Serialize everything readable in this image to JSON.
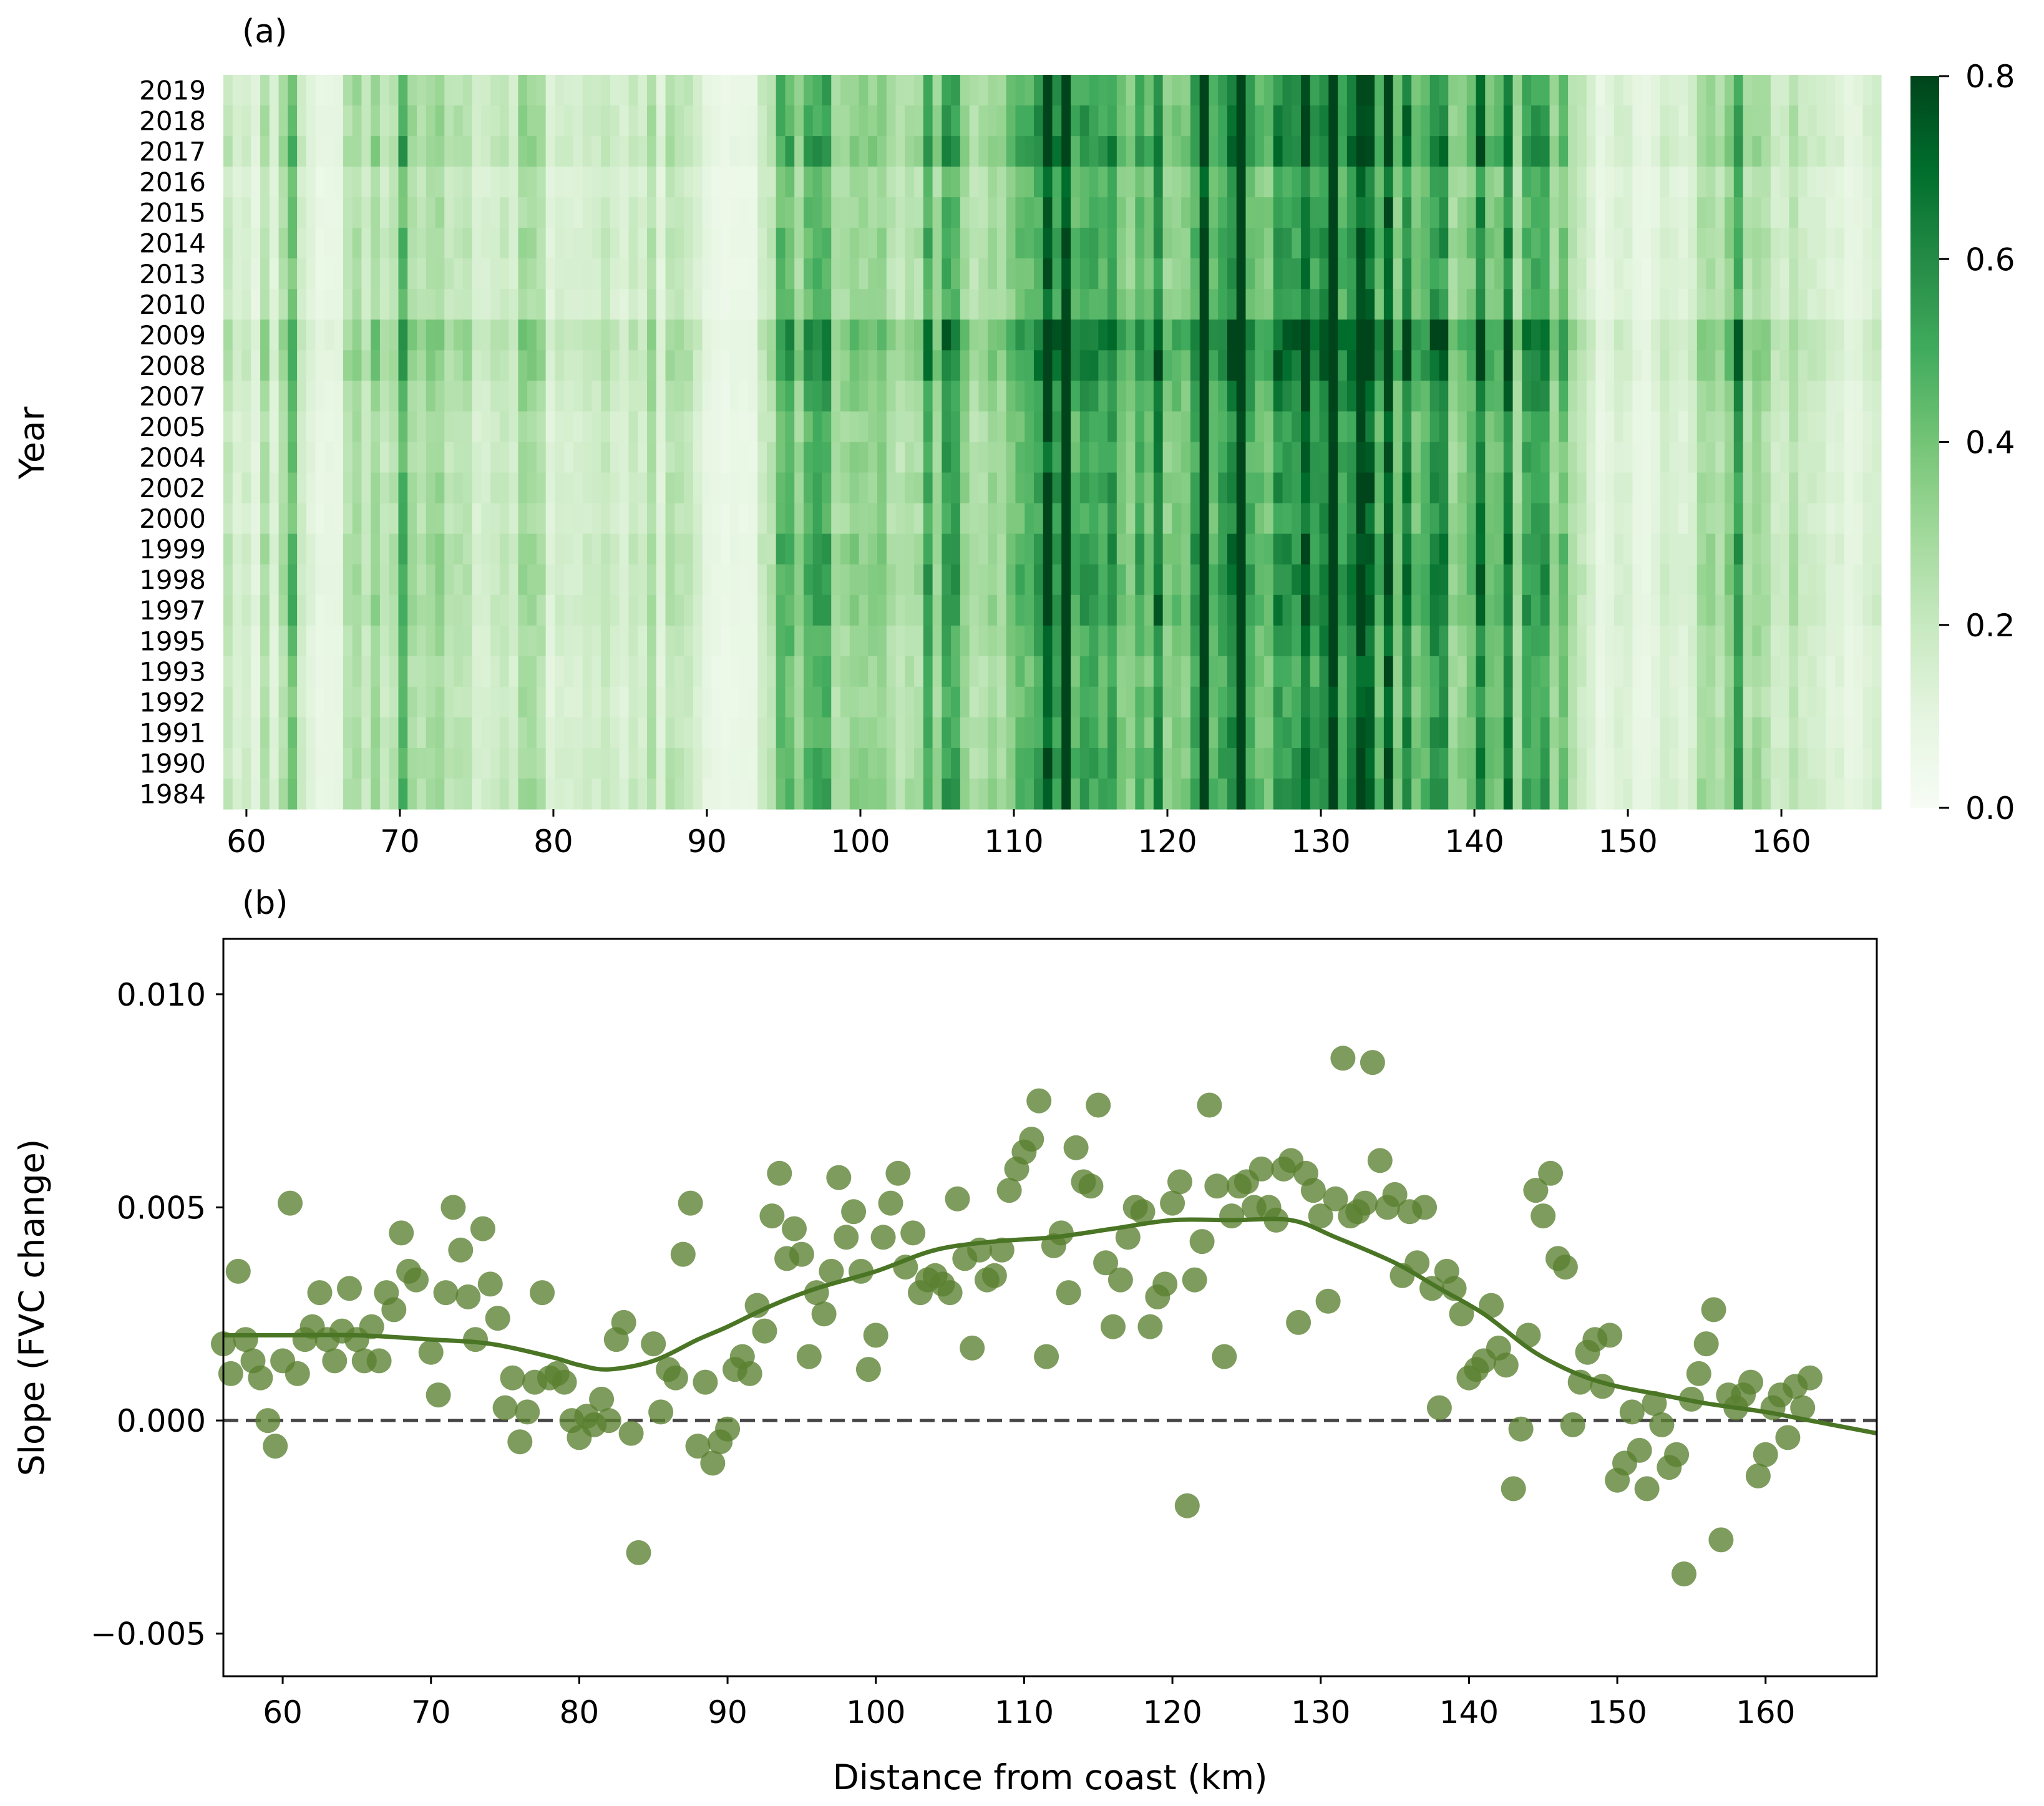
{
  "chart_data": [
    {
      "type": "heatmap",
      "panel_label": "(a)",
      "title": "",
      "xlabel": "",
      "ylabel": "Year",
      "years": [
        "2019",
        "2018",
        "2017",
        "2016",
        "2015",
        "2014",
        "2013",
        "2010",
        "2009",
        "2008",
        "2007",
        "2005",
        "2004",
        "2002",
        "2000",
        "1999",
        "1998",
        "1997",
        "1995",
        "1993",
        "1992",
        "1991",
        "1990",
        "1984"
      ],
      "x_range_km": [
        58.5,
        166.5
      ],
      "x_ticks": [
        60,
        70,
        80,
        90,
        100,
        110,
        120,
        130,
        140,
        150,
        160
      ],
      "x_tick_labels": [
        "60",
        "70",
        "80",
        "90",
        "100",
        "110",
        "120",
        "130",
        "140",
        "150",
        "160"
      ],
      "colorbar": {
        "range": [
          0.0,
          0.8
        ],
        "ticks": [
          0.0,
          0.2,
          0.4,
          0.6,
          0.8
        ],
        "tick_labels": [
          "0.0",
          "0.2",
          "0.4",
          "0.6",
          "0.8"
        ],
        "colormap": "Greens",
        "color_low": "#f7fcf5",
        "color_high": "#00441b"
      },
      "fvc_profile_km": [
        [
          58.5,
          0.17
        ],
        [
          60,
          0.12
        ],
        [
          62,
          0.2
        ],
        [
          62.5,
          0.38
        ],
        [
          64,
          0.14
        ],
        [
          65,
          0.04
        ],
        [
          66,
          0.12
        ],
        [
          68,
          0.32
        ],
        [
          70,
          0.3
        ],
        [
          72,
          0.36
        ],
        [
          74,
          0.26
        ],
        [
          76,
          0.2
        ],
        [
          78,
          0.2
        ],
        [
          80,
          0.16
        ],
        [
          82,
          0.15
        ],
        [
          84,
          0.17
        ],
        [
          86,
          0.18
        ],
        [
          88,
          0.17
        ],
        [
          90,
          0.08
        ],
        [
          92,
          0.06
        ],
        [
          93,
          0.1
        ],
        [
          94,
          0.3
        ],
        [
          96,
          0.34
        ],
        [
          98,
          0.36
        ],
        [
          100,
          0.38
        ],
        [
          102,
          0.34
        ],
        [
          104,
          0.36
        ],
        [
          106,
          0.38
        ],
        [
          108,
          0.38
        ],
        [
          110,
          0.42
        ],
        [
          112,
          0.6
        ],
        [
          114,
          0.64
        ],
        [
          116,
          0.56
        ],
        [
          118,
          0.5
        ],
        [
          120,
          0.5
        ],
        [
          122,
          0.56
        ],
        [
          124,
          0.62
        ],
        [
          126,
          0.62
        ],
        [
          128,
          0.56
        ],
        [
          130,
          0.6
        ],
        [
          132,
          0.58
        ],
        [
          134,
          0.52
        ],
        [
          136,
          0.48
        ],
        [
          138,
          0.5
        ],
        [
          140,
          0.46
        ],
        [
          142,
          0.44
        ],
        [
          144,
          0.44
        ],
        [
          145.5,
          0.44
        ],
        [
          146.5,
          0.18
        ],
        [
          148,
          0.12
        ],
        [
          150,
          0.1
        ],
        [
          152,
          0.12
        ],
        [
          154,
          0.16
        ],
        [
          156,
          0.34
        ],
        [
          158,
          0.4
        ],
        [
          160,
          0.22
        ],
        [
          162,
          0.14
        ],
        [
          164,
          0.12
        ],
        [
          166.5,
          0.1
        ]
      ],
      "year_factors": {
        "2019": 1.0,
        "2018": 1.05,
        "2017": 1.1,
        "2016": 0.85,
        "2015": 0.9,
        "2014": 0.95,
        "2013": 0.9,
        "2010": 0.9,
        "2009": 1.25,
        "2008": 1.2,
        "2007": 1.05,
        "2005": 0.95,
        "2004": 0.95,
        "2002": 1.0,
        "2000": 0.95,
        "1999": 1.05,
        "1998": 1.05,
        "1997": 1.05,
        "1995": 0.95,
        "1993": 0.9,
        "1992": 0.9,
        "1991": 0.95,
        "1990": 1.0,
        "1984": 1.0
      }
    },
    {
      "type": "scatter",
      "panel_label": "(b)",
      "title": "",
      "xlabel": "Distance from coast (km)",
      "ylabel": "Slope (FVC change)",
      "xlim": [
        56,
        167.5
      ],
      "ylim": [
        -0.006,
        0.0113
      ],
      "x_ticks": [
        60,
        70,
        80,
        90,
        100,
        110,
        120,
        130,
        140,
        150,
        160
      ],
      "x_tick_labels": [
        "60",
        "70",
        "80",
        "90",
        "100",
        "110",
        "120",
        "130",
        "140",
        "150",
        "160"
      ],
      "y_ticks": [
        -0.005,
        0.0,
        0.005,
        0.01
      ],
      "y_tick_labels": [
        "−0.005",
        "0.000",
        "0.005",
        "0.010"
      ],
      "reference_line": {
        "y": 0.0,
        "style": "dashed",
        "color": "#444444"
      },
      "point_color": "#5a8030",
      "trend_color": "#4a7525",
      "points": [
        [
          56,
          0.0018
        ],
        [
          56.5,
          0.0011
        ],
        [
          57,
          0.0035
        ],
        [
          57.5,
          0.0019
        ],
        [
          58,
          0.0014
        ],
        [
          58.5,
          0.001
        ],
        [
          59,
          0.0
        ],
        [
          59.5,
          -0.0006
        ],
        [
          60,
          0.0014
        ],
        [
          60.5,
          0.0051
        ],
        [
          61,
          0.0011
        ],
        [
          61.5,
          0.0019
        ],
        [
          62,
          0.0022
        ],
        [
          62.5,
          0.003
        ],
        [
          63,
          0.0019
        ],
        [
          63.5,
          0.0014
        ],
        [
          64,
          0.0021
        ],
        [
          64.5,
          0.0031
        ],
        [
          65,
          0.0019
        ],
        [
          65.5,
          0.0014
        ],
        [
          66,
          0.0022
        ],
        [
          66.5,
          0.0014
        ],
        [
          67,
          0.003
        ],
        [
          67.5,
          0.0026
        ],
        [
          68,
          0.0044
        ],
        [
          68.5,
          0.0035
        ],
        [
          69,
          0.0033
        ],
        [
          70,
          0.0016
        ],
        [
          70.5,
          0.0006
        ],
        [
          71,
          0.003
        ],
        [
          71.5,
          0.005
        ],
        [
          72,
          0.004
        ],
        [
          72.5,
          0.0029
        ],
        [
          73,
          0.0019
        ],
        [
          73.5,
          0.0045
        ],
        [
          74,
          0.0032
        ],
        [
          74.5,
          0.0024
        ],
        [
          75,
          0.0003
        ],
        [
          75.5,
          0.001
        ],
        [
          76,
          -0.0005
        ],
        [
          76.5,
          0.0002
        ],
        [
          77,
          0.0009
        ],
        [
          77.5,
          0.003
        ],
        [
          78,
          0.001
        ],
        [
          78.5,
          0.0011
        ],
        [
          79,
          0.0009
        ],
        [
          79.5,
          0.0
        ],
        [
          80,
          -0.0004
        ],
        [
          80.5,
          0.0001
        ],
        [
          81,
          -0.0001
        ],
        [
          81.5,
          0.0005
        ],
        [
          82,
          0.0
        ],
        [
          82.5,
          0.0019
        ],
        [
          83,
          0.0023
        ],
        [
          83.5,
          -0.0003
        ],
        [
          84,
          -0.0031
        ],
        [
          85,
          0.0018
        ],
        [
          85.5,
          0.0002
        ],
        [
          86,
          0.0012
        ],
        [
          86.5,
          0.001
        ],
        [
          87,
          0.0039
        ],
        [
          87.5,
          0.0051
        ],
        [
          88,
          -0.0006
        ],
        [
          88.5,
          0.0009
        ],
        [
          89,
          -0.001
        ],
        [
          89.5,
          -0.0005
        ],
        [
          90,
          -0.0002
        ],
        [
          90.5,
          0.0012
        ],
        [
          91,
          0.0015
        ],
        [
          91.5,
          0.0011
        ],
        [
          92,
          0.0027
        ],
        [
          92.5,
          0.0021
        ],
        [
          93,
          0.0048
        ],
        [
          93.5,
          0.0058
        ],
        [
          94,
          0.0038
        ],
        [
          94.5,
          0.0045
        ],
        [
          95,
          0.0039
        ],
        [
          95.5,
          0.0015
        ],
        [
          96,
          0.003
        ],
        [
          96.5,
          0.0025
        ],
        [
          97,
          0.0035
        ],
        [
          97.5,
          0.0057
        ],
        [
          98,
          0.0043
        ],
        [
          98.5,
          0.0049
        ],
        [
          99,
          0.0035
        ],
        [
          99.5,
          0.0012
        ],
        [
          100,
          0.002
        ],
        [
          100.5,
          0.0043
        ],
        [
          101,
          0.0051
        ],
        [
          101.5,
          0.0058
        ],
        [
          102,
          0.0036
        ],
        [
          102.5,
          0.0044
        ],
        [
          103,
          0.003
        ],
        [
          103.5,
          0.0033
        ],
        [
          104,
          0.0034
        ],
        [
          104.5,
          0.0032
        ],
        [
          105,
          0.003
        ],
        [
          105.5,
          0.0052
        ],
        [
          106,
          0.0038
        ],
        [
          106.5,
          0.0017
        ],
        [
          107,
          0.004
        ],
        [
          107.5,
          0.0033
        ],
        [
          108,
          0.0034
        ],
        [
          108.5,
          0.004
        ],
        [
          109,
          0.0054
        ],
        [
          109.5,
          0.0059
        ],
        [
          110,
          0.0063
        ],
        [
          110.5,
          0.0066
        ],
        [
          111,
          0.0075
        ],
        [
          111.5,
          0.0015
        ],
        [
          112,
          0.0041
        ],
        [
          112.5,
          0.0044
        ],
        [
          113,
          0.003
        ],
        [
          113.5,
          0.0064
        ],
        [
          114,
          0.0056
        ],
        [
          114.5,
          0.0055
        ],
        [
          115,
          0.0074
        ],
        [
          115.5,
          0.0037
        ],
        [
          116,
          0.0022
        ],
        [
          116.5,
          0.0033
        ],
        [
          117,
          0.0043
        ],
        [
          117.5,
          0.005
        ],
        [
          118,
          0.0049
        ],
        [
          118.5,
          0.0022
        ],
        [
          119,
          0.0029
        ],
        [
          119.5,
          0.0032
        ],
        [
          120,
          0.0051
        ],
        [
          120.5,
          0.0056
        ],
        [
          121,
          -0.002
        ],
        [
          121.5,
          0.0033
        ],
        [
          122,
          0.0042
        ],
        [
          122.5,
          0.0074
        ],
        [
          123,
          0.0055
        ],
        [
          123.5,
          0.0015
        ],
        [
          124,
          0.0048
        ],
        [
          124.5,
          0.0055
        ],
        [
          125,
          0.0056
        ],
        [
          125.5,
          0.005
        ],
        [
          126,
          0.0059
        ],
        [
          126.5,
          0.005
        ],
        [
          127,
          0.0047
        ],
        [
          127.5,
          0.0059
        ],
        [
          128,
          0.0061
        ],
        [
          128.5,
          0.0023
        ],
        [
          129,
          0.0058
        ],
        [
          129.5,
          0.0054
        ],
        [
          130,
          0.0048
        ],
        [
          130.5,
          0.0028
        ],
        [
          131,
          0.0052
        ],
        [
          131.5,
          0.0085
        ],
        [
          132,
          0.0048
        ],
        [
          132.5,
          0.0049
        ],
        [
          133,
          0.0051
        ],
        [
          133.5,
          0.0084
        ],
        [
          134,
          0.0061
        ],
        [
          134.5,
          0.005
        ],
        [
          135,
          0.0053
        ],
        [
          135.5,
          0.0034
        ],
        [
          136,
          0.0049
        ],
        [
          136.5,
          0.0037
        ],
        [
          137,
          0.005
        ],
        [
          137.5,
          0.0031
        ],
        [
          138,
          0.0003
        ],
        [
          138.5,
          0.0035
        ],
        [
          139,
          0.0031
        ],
        [
          139.5,
          0.0025
        ],
        [
          140,
          0.001
        ],
        [
          140.5,
          0.0012
        ],
        [
          141,
          0.0014
        ],
        [
          141.5,
          0.0027
        ],
        [
          142,
          0.0017
        ],
        [
          142.5,
          0.0013
        ],
        [
          143,
          -0.0016
        ],
        [
          143.5,
          -0.0002
        ],
        [
          144,
          0.002
        ],
        [
          144.5,
          0.0054
        ],
        [
          145,
          0.0048
        ],
        [
          145.5,
          0.0058
        ],
        [
          146,
          0.0038
        ],
        [
          146.5,
          0.0036
        ],
        [
          147,
          -0.0001
        ],
        [
          147.5,
          0.0009
        ],
        [
          148,
          0.0016
        ],
        [
          148.5,
          0.0019
        ],
        [
          149,
          0.0008
        ],
        [
          149.5,
          0.002
        ],
        [
          150,
          -0.0014
        ],
        [
          150.5,
          -0.001
        ],
        [
          151,
          0.0002
        ],
        [
          151.5,
          -0.0007
        ],
        [
          152,
          -0.0016
        ],
        [
          152.5,
          0.0004
        ],
        [
          153,
          -0.0001
        ],
        [
          153.5,
          -0.0011
        ],
        [
          154,
          -0.0008
        ],
        [
          154.5,
          -0.0036
        ],
        [
          155,
          0.0005
        ],
        [
          155.5,
          0.0011
        ],
        [
          156,
          0.0018
        ],
        [
          156.5,
          0.0026
        ],
        [
          157,
          -0.0028
        ],
        [
          157.5,
          0.0006
        ],
        [
          158,
          0.0003
        ],
        [
          158.5,
          0.0006
        ],
        [
          159,
          0.0009
        ],
        [
          159.5,
          -0.0013
        ],
        [
          160,
          -0.0008
        ],
        [
          160.5,
          0.0003
        ],
        [
          161,
          0.0006
        ],
        [
          161.5,
          -0.0004
        ],
        [
          162,
          0.0008
        ],
        [
          162.5,
          0.0003
        ],
        [
          163,
          0.001
        ]
      ],
      "trend_line": [
        [
          56,
          0.002
        ],
        [
          60,
          0.002
        ],
        [
          65,
          0.002
        ],
        [
          70,
          0.0019
        ],
        [
          74,
          0.0018
        ],
        [
          78,
          0.0015
        ],
        [
          80,
          0.0013
        ],
        [
          82,
          0.0012
        ],
        [
          85,
          0.0014
        ],
        [
          88,
          0.0019
        ],
        [
          90,
          0.0022
        ],
        [
          93,
          0.0027
        ],
        [
          96,
          0.0031
        ],
        [
          100,
          0.0035
        ],
        [
          104,
          0.004
        ],
        [
          108,
          0.0042
        ],
        [
          112,
          0.0043
        ],
        [
          116,
          0.0045
        ],
        [
          120,
          0.0047
        ],
        [
          124,
          0.0047
        ],
        [
          128,
          0.0047
        ],
        [
          131,
          0.0043
        ],
        [
          135,
          0.0037
        ],
        [
          138,
          0.0031
        ],
        [
          141,
          0.0025
        ],
        [
          144,
          0.0017
        ],
        [
          146,
          0.0013
        ],
        [
          148,
          0.001
        ],
        [
          150,
          0.0008
        ],
        [
          153,
          0.0006
        ],
        [
          156,
          0.0004
        ],
        [
          160,
          0.0002
        ],
        [
          163,
          0.0
        ],
        [
          167.5,
          -0.0003
        ]
      ]
    }
  ]
}
